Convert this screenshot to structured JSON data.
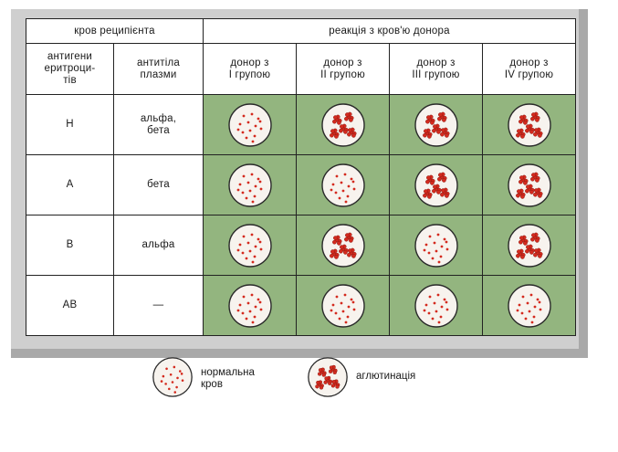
{
  "header": {
    "recipient": "кров реципієнта",
    "reaction": "реакція з кров'ю донора",
    "antigens": "антигени\nеритроци-\nтів",
    "antibodies": "антитіла\nплазми",
    "donors": [
      "донор з\nI групою",
      "донор з\nII групою",
      "донор з\nIII групою",
      "донор з\nIV групою"
    ]
  },
  "rows": [
    {
      "antigen": "Н",
      "antibody": "альфа,\nбета",
      "reactions": [
        "normal",
        "agglutination",
        "agglutination",
        "agglutination"
      ]
    },
    {
      "antigen": "А",
      "antibody": "бета",
      "reactions": [
        "normal",
        "normal",
        "agglutination",
        "agglutination"
      ]
    },
    {
      "antigen": "В",
      "antibody": "альфа",
      "reactions": [
        "normal",
        "agglutination",
        "normal",
        "agglutination"
      ]
    },
    {
      "antigen": "АВ",
      "antibody": "—",
      "reactions": [
        "normal",
        "normal",
        "normal",
        "normal"
      ]
    }
  ],
  "legend": {
    "normal": "нормальна\nкров",
    "agglutination": "аглютинація"
  },
  "colors": {
    "cell_red": "#d42a1e",
    "green_bg": "#93b57f",
    "dish_fill": "#f7f3ee"
  }
}
